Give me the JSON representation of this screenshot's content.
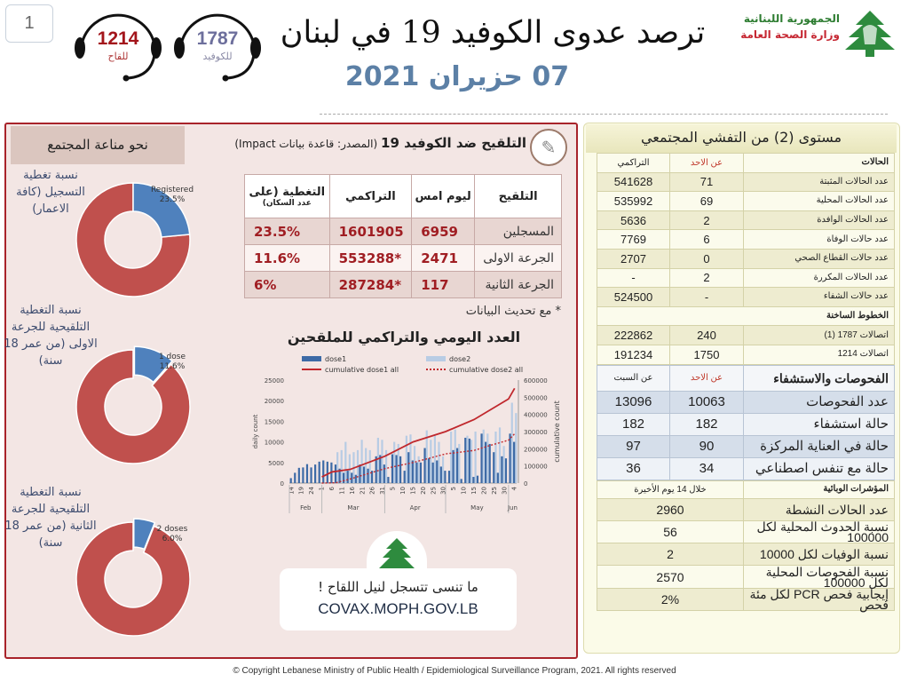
{
  "page_number": "1",
  "hotlines": [
    {
      "number": "1214",
      "label": "للقاح",
      "color": "#a3151b",
      "label_color": "#b03a3a"
    },
    {
      "number": "1787",
      "label": "للكوفيد",
      "color": "#6d6f9c",
      "label_color": "#8a8aa6"
    }
  ],
  "header": {
    "title": "ترصد عدوى الكوفيد 19 في لبنان",
    "date": "07 حزيران 2021",
    "logo_line1": "الجمهورية اللبنانية",
    "logo_line2": "وزارة الصحة العامة"
  },
  "colors": {
    "accent_red": "#a8232a",
    "donut_red": "#c0504d",
    "donut_blue": "#4f81bd",
    "date_blue": "#5c80a6"
  },
  "immunity": {
    "heading": "نحو مناعة المجتمع",
    "donuts": [
      {
        "label": "نسبة تغطية التسجيل (كافة الاعمار)",
        "slice_name": "Registered",
        "slice_value": "23.5%",
        "percent": 23.5
      },
      {
        "label": "نسبة التغطية التلقيحية للجرعة الاولى (من عمر 18 سنة)",
        "slice_name": "1 dose",
        "slice_value": "11.6%",
        "percent": 11.6
      },
      {
        "label": "نسبة التغطية التلقيحية للجرعة الثانية (من عمر 18 سنة)",
        "slice_name": "2 doses",
        "slice_value": "6.0%",
        "percent": 6.0
      }
    ]
  },
  "vaccination": {
    "title_bold": "التلقيح ضد الكوفيد 19",
    "title_source": "(المصدر: قاعدة بيانات Impact)",
    "headers": {
      "type": "التلقيح",
      "yesterday": "ليوم امس",
      "cumulative": "التراكمي",
      "coverage": "التغطية (على",
      "coverage_sub": "عدد السكان)"
    },
    "rows": [
      {
        "label": "المسجلين",
        "yesterday": "6959",
        "cumulative": "1601905",
        "coverage": "23.5%"
      },
      {
        "label": "الجرعة الاولى",
        "yesterday": "2471",
        "cumulative": "*553288",
        "coverage": "11.6%"
      },
      {
        "label": "الجرعة الثانية",
        "yesterday": "117",
        "cumulative": "*287284",
        "coverage": "6%"
      }
    ],
    "note": "* مع تحديث البيانات"
  },
  "chart_title": "العدد اليومي والتراكمي للملقحين",
  "chart_data": {
    "type": "bar",
    "ylabel": "daily count",
    "y2label": "cumulative count",
    "ylim": [
      0,
      25000
    ],
    "y2lim": [
      0,
      600000
    ],
    "yticks": [
      0,
      5000,
      10000,
      15000,
      20000,
      25000
    ],
    "y2ticks": [
      0,
      100000,
      200000,
      300000,
      400000,
      500000,
      600000
    ],
    "xlim": [
      "2021-02-13",
      "2021-06-05"
    ],
    "legend": [
      "dose1",
      "dose2",
      "cumulative dose1 all",
      "cumulative dose2 all"
    ],
    "legend_placement": "top",
    "x_ticks": [
      {
        "date": "2021-02-14",
        "label": "14"
      },
      {
        "date": "2021-02-19",
        "label": "19"
      },
      {
        "date": "2021-02-24",
        "label": "24"
      },
      {
        "date": "2021-03-01",
        "label": "1"
      },
      {
        "date": "2021-03-06",
        "label": "6"
      },
      {
        "date": "2021-03-11",
        "label": "11"
      },
      {
        "date": "2021-03-16",
        "label": "16"
      },
      {
        "date": "2021-03-21",
        "label": "21"
      },
      {
        "date": "2021-03-26",
        "label": "26"
      },
      {
        "date": "2021-03-31",
        "label": "31"
      },
      {
        "date": "2021-04-05",
        "label": "5"
      },
      {
        "date": "2021-04-10",
        "label": "10"
      },
      {
        "date": "2021-04-15",
        "label": "15"
      },
      {
        "date": "2021-04-20",
        "label": "20"
      },
      {
        "date": "2021-04-25",
        "label": "25"
      },
      {
        "date": "2021-04-30",
        "label": "30"
      },
      {
        "date": "2021-05-05",
        "label": "5"
      },
      {
        "date": "2021-05-10",
        "label": "10"
      },
      {
        "date": "2021-05-15",
        "label": "15"
      },
      {
        "date": "2021-05-20",
        "label": "20"
      },
      {
        "date": "2021-05-25",
        "label": "25"
      },
      {
        "date": "2021-05-30",
        "label": "30"
      },
      {
        "date": "2021-06-04",
        "label": "4"
      }
    ],
    "months": [
      {
        "label": "Feb",
        "start": "2021-02-13",
        "end": "2021-03-01"
      },
      {
        "label": "Mar",
        "start": "2021-03-01",
        "end": "2021-04-01"
      },
      {
        "label": "Apr",
        "start": "2021-04-01",
        "end": "2021-05-01"
      },
      {
        "label": "May",
        "start": "2021-05-01",
        "end": "2021-06-01"
      },
      {
        "label": "Jun",
        "start": "2021-06-01",
        "end": "2021-06-05"
      }
    ],
    "x": [
      "2021-02-14",
      "2021-02-16",
      "2021-02-18",
      "2021-02-20",
      "2021-02-22",
      "2021-02-24",
      "2021-02-26",
      "2021-02-28",
      "2021-03-02",
      "2021-03-04",
      "2021-03-06",
      "2021-03-08",
      "2021-03-10",
      "2021-03-12",
      "2021-03-14",
      "2021-03-16",
      "2021-03-18",
      "2021-03-20",
      "2021-03-22",
      "2021-03-24",
      "2021-03-26",
      "2021-03-28",
      "2021-03-30",
      "2021-04-01",
      "2021-04-03",
      "2021-04-05",
      "2021-04-07",
      "2021-04-09",
      "2021-04-11",
      "2021-04-13",
      "2021-04-15",
      "2021-04-17",
      "2021-04-19",
      "2021-04-21",
      "2021-04-23",
      "2021-04-25",
      "2021-04-27",
      "2021-04-29",
      "2021-05-01",
      "2021-05-03",
      "2021-05-05",
      "2021-05-07",
      "2021-05-09",
      "2021-05-11",
      "2021-05-13",
      "2021-05-15",
      "2021-05-17",
      "2021-05-19",
      "2021-05-21",
      "2021-05-23",
      "2021-05-25",
      "2021-05-27",
      "2021-05-29",
      "2021-05-31",
      "2021-06-02",
      "2021-06-04"
    ],
    "series": [
      {
        "name": "dose1",
        "values": [
          1200,
          2500,
          3700,
          3800,
          4600,
          3800,
          4500,
          5200,
          5500,
          5200,
          5000,
          4500,
          3500,
          2500,
          3000,
          2500,
          2000,
          4500,
          4000,
          3500,
          3000,
          6500,
          6800,
          4500,
          1500,
          7000,
          6800,
          6500,
          3000,
          7500,
          5500,
          5000,
          5000,
          8500,
          6000,
          5000,
          5500,
          4000,
          3000,
          3000,
          8000,
          8500,
          1000,
          11000,
          10800,
          1500,
          1800,
          12000,
          10000,
          9500,
          7500,
          2500,
          6500,
          6000,
          12000,
          10000
        ]
      },
      {
        "name": "dose2",
        "values": [
          0,
          0,
          0,
          0,
          0,
          0,
          0,
          0,
          0,
          0,
          0,
          7500,
          8000,
          10000,
          7000,
          7500,
          8000,
          10500,
          8500,
          8000,
          0,
          11000,
          10500,
          8000,
          0,
          10000,
          9500,
          0,
          11500,
          11800,
          9000,
          6500,
          0,
          12800,
          10500,
          11500,
          10000,
          6500,
          0,
          12500,
          13000,
          9500,
          0,
          11500,
          10500,
          12500,
          0,
          13000,
          12000,
          0,
          12500,
          13500,
          9000,
          0,
          19500,
          17000
        ]
      },
      {
        "name": "cumulative dose1 all",
        "axis": "right",
        "x": [
          "2021-03-01",
          "2021-03-06",
          "2021-03-15",
          "2021-04-01",
          "2021-04-15",
          "2021-05-01",
          "2021-05-15",
          "2021-06-01",
          "2021-06-04"
        ],
        "values": [
          36000,
          65000,
          80000,
          156000,
          240000,
          300000,
          370000,
          490000,
          552000
        ]
      },
      {
        "name": "cumulative dose2 all",
        "axis": "right",
        "x": [
          "2021-03-01",
          "2021-03-08",
          "2021-03-15",
          "2021-04-01",
          "2021-04-15",
          "2021-05-01",
          "2021-05-15",
          "2021-05-22",
          "2021-06-01",
          "2021-06-04"
        ],
        "values": [
          0,
          2000,
          24000,
          84000,
          120000,
          170000,
          190000,
          216000,
          250000,
          287000
        ]
      }
    ]
  },
  "promo": {
    "text": "ما تنسى تتسجل لنيل اللقاح !",
    "url": "COVAX.MOPH.GOV.LB"
  },
  "community": {
    "title": "مستوى (2) من التفشي المجتمعي",
    "cases_header": {
      "label": "الحالات",
      "sunday": "عن الاحد",
      "cumulative": "التراكمي"
    },
    "cases": [
      {
        "label": "عدد الحالات المثبتة",
        "sunday": "71",
        "cumulative": "541628"
      },
      {
        "label": "عدد الحالات المحلية",
        "sunday": "69",
        "cumulative": "535992"
      },
      {
        "label": "عدد الحالات الوافدة",
        "sunday": "2",
        "cumulative": "5636"
      },
      {
        "label": "عدد حالات الوفاة",
        "sunday": "6",
        "cumulative": "7769"
      },
      {
        "label": "عدد حالات القطاع الصحي",
        "sunday": "0",
        "cumulative": "2707"
      },
      {
        "label": "عدد الحالات المكررة",
        "sunday": "2",
        "cumulative": "-"
      },
      {
        "label": "عدد حالات الشفاء",
        "sunday": "-",
        "cumulative": "524500"
      }
    ],
    "hotlines_header": "الخطوط الساخنة",
    "hotlines": [
      {
        "label": "اتصالات 1787 (1)",
        "sunday": "240",
        "cumulative": "222862"
      },
      {
        "label": "اتصالات 1214",
        "sunday": "1750",
        "cumulative": "191234"
      }
    ],
    "tests_header": {
      "label": "الفحوصات والاستشفاء",
      "sunday": "عن الاحد",
      "saturday": "عن السبت"
    },
    "tests": [
      {
        "label": "عدد الفحوصات",
        "sunday": "10063",
        "saturday": "13096"
      },
      {
        "label": "حالة استشفاء",
        "sunday": "182",
        "saturday": "182"
      },
      {
        "label": "حالة في العناية المركزة",
        "sunday": "90",
        "saturday": "97"
      },
      {
        "label": "حالة مع تنفس اصطناعي",
        "sunday": "34",
        "saturday": "36"
      }
    ],
    "indicators_header": {
      "label": "المؤشرات الوبائية",
      "period": "خلال 14 يوم الأخيرة"
    },
    "indicators": [
      {
        "label": "عدد الحالات النشطة",
        "value": "2960"
      },
      {
        "label": "نسبة الحدوث المحلية لكل 100000",
        "value": "56"
      },
      {
        "label": "نسبة الوفيات لكل 10000",
        "value": "2"
      },
      {
        "label": "نسبة الفحوصات المحلية لكل 100000",
        "value": "2570"
      },
      {
        "label": "إيجابية فحص PCR لكل مئة فحص",
        "value": "2%"
      }
    ]
  },
  "footer": "© Copyright Lebanese Ministry of Public Health / Epidemiological Surveillance Program, 2021. All rights reserved"
}
